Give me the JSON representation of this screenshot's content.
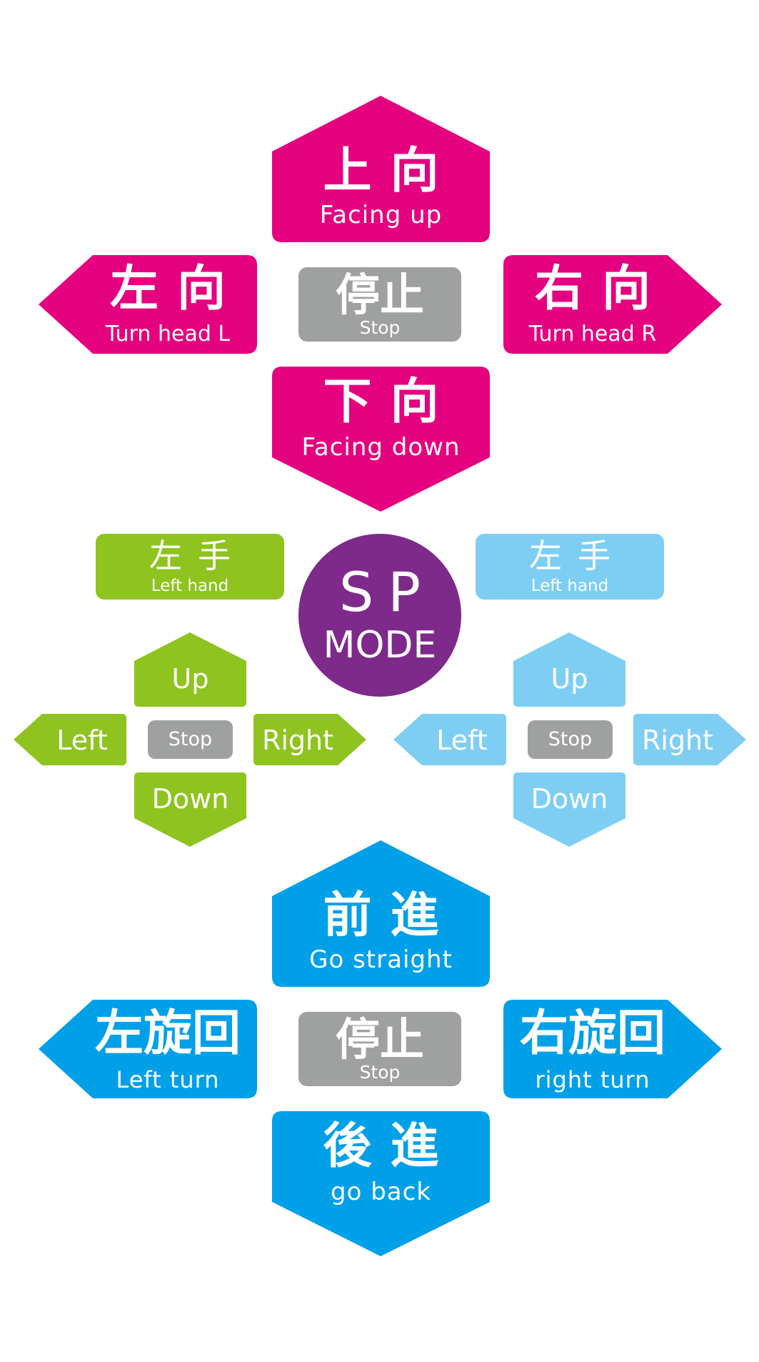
{
  "colors": {
    "head": "#e4007f",
    "stop": "#9fa0a0",
    "left_hand": "#8fc31f",
    "right_hand": "#7ecef4",
    "sp_mode": "#7d2a8a",
    "move": "#00a0e9",
    "text": "#ffffff"
  },
  "head": {
    "up": {
      "jp": "上向",
      "en": "Facing up"
    },
    "left": {
      "jp": "左向",
      "en": "Turn head L"
    },
    "stop": {
      "jp": "停止",
      "en": "Stop"
    },
    "right": {
      "jp": "右向",
      "en": "Turn head R"
    },
    "down": {
      "jp": "下向",
      "en": "Facing down"
    }
  },
  "sp_mode": {
    "line1": "SP",
    "line2": "MODE"
  },
  "left_hand": {
    "title_jp": "左手",
    "title_en": "Left hand",
    "up": "Up",
    "left": "Left",
    "stop": "Stop",
    "right": "Right",
    "down": "Down"
  },
  "right_hand": {
    "title_jp": "左手",
    "title_en": "Left hand",
    "up": "Up",
    "left": "Left",
    "stop": "Stop",
    "right": "Right",
    "down": "Down"
  },
  "move": {
    "forward": {
      "jp": "前進",
      "en": "Go straight"
    },
    "left": {
      "jp": "左旋回",
      "en": "Left turn"
    },
    "stop": {
      "jp": "停止",
      "en": "Stop"
    },
    "right": {
      "jp": "右旋回",
      "en": "right turn"
    },
    "back": {
      "jp": "後進",
      "en": "go back"
    }
  }
}
